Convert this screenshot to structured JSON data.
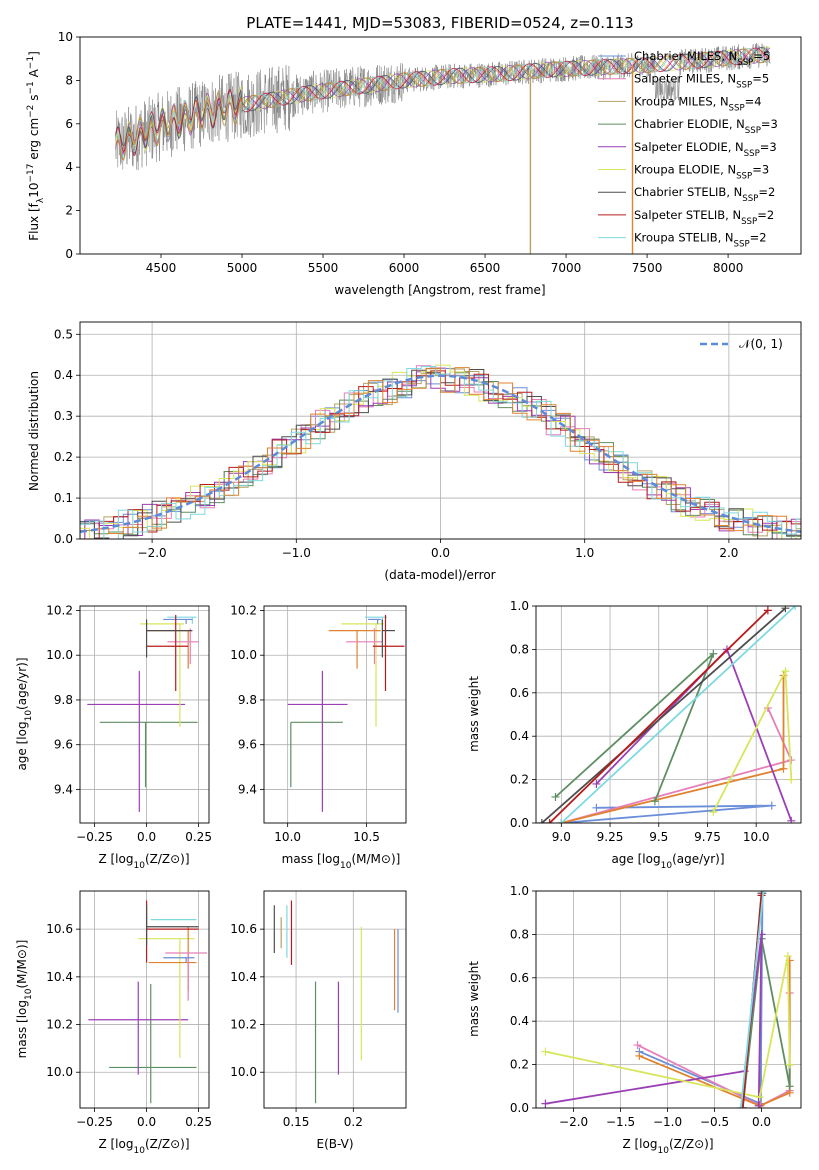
{
  "figure_title": "PLATE=1441, MJD=53083, FIBERID=0524, z=0.113",
  "colors": {
    "Chabrier MILES": "#6a8fd8",
    "Salpeter MILES": "#e67fb8",
    "Kroupa MILES": "#b5a264",
    "Chabrier ELODIE": "#5f8e63",
    "Salpeter ELODIE": "#9b3fb5",
    "Kroupa ELODIE": "#d7e65a",
    "Chabrier STELIB": "#4d4d4d",
    "Salpeter STELIB": "#b71c1c",
    "Kroupa STELIB": "#7fd9e0",
    "orange": "#e0822e",
    "data": "#808080",
    "gaussian": "#5b8bd9"
  },
  "chart_data": [
    {
      "id": "spectrum",
      "type": "line",
      "xlabel": "wavelength [Angstrom, rest frame]",
      "ylabel": "Flux [f_λ10^-17 erg cm^-2 s^-1 A^-1]",
      "xlim": [
        4000,
        8450
      ],
      "ylim": [
        0,
        10
      ],
      "xticks": [
        4500,
        5000,
        5500,
        6000,
        6500,
        7000,
        7500,
        8000
      ],
      "yticks": [
        0,
        2,
        4,
        6,
        8,
        10
      ],
      "legend_position": "upper-right",
      "legend": [
        {
          "base": "Chabrier MILES, N",
          "sub": "SSP",
          "tail": "=5",
          "color": "#6a8fd8"
        },
        {
          "base": "Salpeter MILES, N",
          "sub": "SSP",
          "tail": "=5",
          "color": "#e67fb8"
        },
        {
          "base": "Kroupa MILES, N",
          "sub": "SSP",
          "tail": "=4",
          "color": "#b5a264"
        },
        {
          "base": "Chabrier ELODIE, N",
          "sub": "SSP",
          "tail": "=3",
          "color": "#5f8e63"
        },
        {
          "base": "Salpeter ELODIE, N",
          "sub": "SSP",
          "tail": "=3",
          "color": "#9b3fb5"
        },
        {
          "base": "Kroupa ELODIE, N",
          "sub": "SSP",
          "tail": "=3",
          "color": "#d7e65a"
        },
        {
          "base": "Chabrier STELIB, N",
          "sub": "SSP",
          "tail": "=2",
          "color": "#4d4d4d"
        },
        {
          "base": "Salpeter STELIB, N",
          "sub": "SSP",
          "tail": "=2",
          "color": "#b71c1c"
        },
        {
          "base": "Kroupa STELIB, N",
          "sub": "SSP",
          "tail": "=2",
          "color": "#7fd9e0"
        }
      ],
      "continuum": {
        "x": [
          4220,
          4500,
          4800,
          5100,
          5400,
          5700,
          6000,
          6300,
          6600,
          6900,
          7200,
          7500,
          7800,
          8100,
          8260
        ],
        "y": [
          5.0,
          5.9,
          6.6,
          7.0,
          7.4,
          7.7,
          8.0,
          8.2,
          8.3,
          8.5,
          8.6,
          8.7,
          8.9,
          9.1,
          9.2
        ]
      },
      "spikes": [
        {
          "x": 6780,
          "color": "#b5a264"
        },
        {
          "x": 7410,
          "color": "#e0822e"
        }
      ]
    },
    {
      "id": "residuals",
      "type": "histogram",
      "xlabel": "(data-model)/error",
      "ylabel": "Normed distribution",
      "xlim": [
        -2.5,
        2.5
      ],
      "ylim": [
        0,
        0.53
      ],
      "xticks": [
        -2,
        -1,
        0,
        1,
        2
      ],
      "yticks": [
        0.0,
        0.1,
        0.2,
        0.3,
        0.4,
        0.5
      ],
      "gaussian_label": "𝒩(0, 1)",
      "legend_position": "upper-right"
    },
    {
      "id": "age_vs_Z",
      "type": "errorbar",
      "xlabel": "Z [log10(Z/Z⊙)]",
      "ylabel": "age  [log10(age/yr)]",
      "xlim": [
        -0.32,
        0.3
      ],
      "ylim": [
        9.25,
        10.22
      ],
      "xticks": [
        -0.25,
        0.0,
        0.25
      ],
      "yticks": [
        9.4,
        9.6,
        9.8,
        10.0,
        10.2
      ],
      "points": [
        {
          "x": -0.005,
          "xerr": [
            0.22,
            0.25
          ],
          "y": 9.7,
          "yerr": [
            0.29,
            0.0
          ],
          "color": "#5f8e63"
        },
        {
          "x": -0.035,
          "xerr": [
            0.25,
            0.22
          ],
          "y": 9.78,
          "yerr": [
            0.48,
            0.15
          ],
          "color": "#9b3fb5"
        },
        {
          "x": 0.16,
          "xerr": [
            0.19,
            0.02
          ],
          "y": 10.14,
          "yerr": [
            0.46,
            0.0
          ],
          "color": "#d7e65a"
        },
        {
          "x": 0.2,
          "xerr": [
            0.2,
            0.02
          ],
          "y": 10.11,
          "yerr": [
            0.17,
            0.0
          ],
          "color": "#e0822e"
        },
        {
          "x": 0.21,
          "xerr": [
            0.11,
            0.04
          ],
          "y": 10.06,
          "yerr": [
            0.1,
            0.06
          ],
          "color": "#e67fb8"
        },
        {
          "x": 0.22,
          "xerr": [
            0.12,
            0.02
          ],
          "y": 10.17,
          "yerr": [
            0.03,
            0.0
          ],
          "color": "#7fd9e0"
        },
        {
          "x": 0.19,
          "xerr": [
            0.11,
            0.03
          ],
          "y": 10.16,
          "yerr": [
            0.02,
            0.0
          ],
          "color": "#6a8fd8"
        },
        {
          "x": 0.14,
          "xerr": [
            0.14,
            0.06
          ],
          "y": 10.04,
          "yerr": [
            0.2,
            0.14
          ],
          "color": "#b71c1c"
        },
        {
          "x": 0.0,
          "xerr": [
            0.0,
            0.22
          ],
          "y": 10.11,
          "yerr": [
            0.12,
            0.05
          ],
          "color": "#4d4d4d"
        }
      ]
    },
    {
      "id": "age_vs_mass",
      "type": "errorbar",
      "xlabel": "mass [log10(M/M⊙)]",
      "ylabel": "",
      "xlim": [
        9.85,
        10.75
      ],
      "ylim": [
        9.25,
        10.22
      ],
      "xticks": [
        10.0,
        10.5
      ],
      "yticks": [
        9.4,
        9.6,
        9.8,
        10.0,
        10.2
      ],
      "points": [
        {
          "x": 10.02,
          "xerr": [
            0.0,
            0.33
          ],
          "y": 9.7,
          "yerr": [
            0.29,
            0.0
          ],
          "color": "#5f8e63"
        },
        {
          "x": 10.22,
          "xerr": [
            0.22,
            0.16
          ],
          "y": 9.78,
          "yerr": [
            0.48,
            0.15
          ],
          "color": "#9b3fb5"
        },
        {
          "x": 10.56,
          "xerr": [
            0.22,
            0.05
          ],
          "y": 10.14,
          "yerr": [
            0.46,
            0.0
          ],
          "color": "#d7e65a"
        },
        {
          "x": 10.44,
          "xerr": [
            0.18,
            0.15
          ],
          "y": 10.11,
          "yerr": [
            0.17,
            0.0
          ],
          "color": "#e0822e"
        },
        {
          "x": 10.55,
          "xerr": [
            0.18,
            0.05
          ],
          "y": 10.06,
          "yerr": [
            0.1,
            0.06
          ],
          "color": "#e67fb8"
        },
        {
          "x": 10.6,
          "xerr": [
            0.11,
            0.03
          ],
          "y": 10.17,
          "yerr": [
            0.03,
            0.0
          ],
          "color": "#7fd9e0"
        },
        {
          "x": 10.57,
          "xerr": [
            0.06,
            0.02
          ],
          "y": 10.16,
          "yerr": [
            0.02,
            0.0
          ],
          "color": "#6a8fd8"
        },
        {
          "x": 10.62,
          "xerr": [
            0.08,
            0.12
          ],
          "y": 10.04,
          "yerr": [
            0.2,
            0.14
          ],
          "color": "#b71c1c"
        },
        {
          "x": 10.6,
          "xerr": [
            0.0,
            0.08
          ],
          "y": 10.11,
          "yerr": [
            0.12,
            0.05
          ],
          "color": "#4d4d4d"
        }
      ]
    },
    {
      "id": "mass_weight_vs_age",
      "type": "line",
      "xlabel": "age  [log10(age/yr)]",
      "ylabel": "mass weight",
      "xlim": [
        8.87,
        10.23
      ],
      "ylim": [
        0,
        1
      ],
      "xticks": [
        9.0,
        9.25,
        9.5,
        9.75,
        10.0
      ],
      "yticks": [
        0.0,
        0.2,
        0.4,
        0.6,
        0.8,
        1.0
      ],
      "series": [
        {
          "color": "#6a8fd8",
          "x": [
            9.18,
            10.08,
            9.0
          ],
          "y": [
            0.07,
            0.08,
            0.0
          ]
        },
        {
          "color": "#e67fb8",
          "x": [
            10.06,
            10.18,
            9.0
          ],
          "y": [
            0.53,
            0.29,
            0.0
          ]
        },
        {
          "color": "#e0822e",
          "x": [
            10.14,
            10.14,
            9.0
          ],
          "y": [
            0.68,
            0.25,
            0.0
          ]
        },
        {
          "color": "#5f8e63",
          "x": [
            9.48,
            9.78,
            8.97
          ],
          "y": [
            0.1,
            0.78,
            0.12
          ]
        },
        {
          "color": "#9b3fb5",
          "x": [
            10.18,
            9.85,
            9.18
          ],
          "y": [
            0.01,
            0.8,
            0.18
          ]
        },
        {
          "color": "#d7e65a",
          "x": [
            9.78,
            10.15,
            10.18
          ],
          "y": [
            0.05,
            0.7,
            0.2
          ]
        },
        {
          "color": "#4d4d4d",
          "x": [
            8.9,
            10.15
          ],
          "y": [
            0.0,
            0.99
          ]
        },
        {
          "color": "#b71c1c",
          "x": [
            8.94,
            10.06
          ],
          "y": [
            0.0,
            0.98
          ]
        },
        {
          "color": "#7fd9e0",
          "x": [
            9.0,
            10.2
          ],
          "y": [
            0.0,
            1.0
          ]
        }
      ]
    },
    {
      "id": "mass_vs_Z",
      "type": "errorbar",
      "xlabel": "Z [log10(Z/Z⊙)]",
      "ylabel": "mass [log10(M/M⊙)]",
      "xlim": [
        -0.32,
        0.3
      ],
      "ylim": [
        9.85,
        10.76
      ],
      "xticks": [
        -0.25,
        0.0,
        0.25
      ],
      "yticks": [
        10.0,
        10.2,
        10.4,
        10.6
      ],
      "points": [
        {
          "x": 0.02,
          "xerr": [
            0.2,
            0.22
          ],
          "y": 10.02,
          "yerr": [
            0.15,
            0.35
          ],
          "color": "#5f8e63"
        },
        {
          "x": -0.04,
          "xerr": [
            0.24,
            0.24
          ],
          "y": 10.22,
          "yerr": [
            0.23,
            0.16
          ],
          "color": "#9b3fb5"
        },
        {
          "x": 0.16,
          "xerr": [
            0.2,
            0.07
          ],
          "y": 10.56,
          "yerr": [
            0.5,
            0.0
          ],
          "color": "#d7e65a"
        },
        {
          "x": 0.2,
          "xerr": [
            0.19,
            0.04
          ],
          "y": 10.46,
          "yerr": [
            0.12,
            0.15
          ],
          "color": "#e0822e"
        },
        {
          "x": 0.2,
          "xerr": [
            0.11,
            0.09
          ],
          "y": 10.5,
          "yerr": [
            0.2,
            0.0
          ],
          "color": "#e67fb8"
        },
        {
          "x": 0.22,
          "xerr": [
            0.2,
            0.02
          ],
          "y": 10.64,
          "yerr": [
            0.0,
            0.0
          ],
          "color": "#7fd9e0"
        },
        {
          "x": 0.19,
          "xerr": [
            0.11,
            0.04
          ],
          "y": 10.48,
          "yerr": [
            0.02,
            0.0
          ],
          "color": "#6a8fd8"
        },
        {
          "x": 0.0,
          "xerr": [
            0.0,
            0.25
          ],
          "y": 10.6,
          "yerr": [
            0.14,
            0.12
          ],
          "color": "#b71c1c"
        },
        {
          "x": 0.0,
          "xerr": [
            0.0,
            0.25
          ],
          "y": 10.61,
          "yerr": [
            0.08,
            0.09
          ],
          "color": "#4d4d4d"
        }
      ]
    },
    {
      "id": "mass_vs_ebv",
      "type": "errorbar",
      "xlabel": "E(B-V)",
      "ylabel": "",
      "xlim": [
        0.122,
        0.246
      ],
      "ylim": [
        9.85,
        10.76
      ],
      "xticks": [
        0.15,
        0.2
      ],
      "yticks": [
        10.0,
        10.2,
        10.4,
        10.6
      ],
      "points": [
        {
          "x": 0.131,
          "xerr": [
            0,
            0
          ],
          "y": 10.6,
          "yerr": [
            0.1,
            0.1
          ],
          "color": "#4d4d4d"
        },
        {
          "x": 0.137,
          "xerr": [
            0,
            0
          ],
          "y": 10.58,
          "yerr": [
            0.06,
            0.07
          ],
          "color": "#b5a264"
        },
        {
          "x": 0.142,
          "xerr": [
            0,
            0
          ],
          "y": 10.58,
          "yerr": [
            0.1,
            0.12
          ],
          "color": "#7fd9e0"
        },
        {
          "x": 0.146,
          "xerr": [
            0,
            0
          ],
          "y": 10.58,
          "yerr": [
            0.13,
            0.14
          ],
          "color": "#b71c1c"
        },
        {
          "x": 0.167,
          "xerr": [
            0,
            0
          ],
          "y": 10.12,
          "yerr": [
            0.25,
            0.26
          ],
          "color": "#5f8e63"
        },
        {
          "x": 0.187,
          "xerr": [
            0,
            0
          ],
          "y": 10.19,
          "yerr": [
            0.2,
            0.19
          ],
          "color": "#9b3fb5"
        },
        {
          "x": 0.207,
          "xerr": [
            0,
            0
          ],
          "y": 10.34,
          "yerr": [
            0.29,
            0.27
          ],
          "color": "#d7e65a"
        },
        {
          "x": 0.236,
          "xerr": [
            0,
            0
          ],
          "y": 10.42,
          "yerr": [
            0.16,
            0.18
          ],
          "color": "#e0822e"
        },
        {
          "x": 0.239,
          "xerr": [
            0,
            0
          ],
          "y": 10.42,
          "yerr": [
            0.17,
            0.18
          ],
          "color": "#6a8fd8"
        }
      ]
    },
    {
      "id": "mass_weight_vs_Z",
      "type": "line",
      "xlabel": "Z [log10(Z/Z⊙)]",
      "ylabel": "mass weight",
      "xlim": [
        -2.4,
        0.42
      ],
      "ylim": [
        0,
        1
      ],
      "xticks": [
        -2.0,
        -1.5,
        -1.0,
        -0.5,
        0.0
      ],
      "yticks": [
        0.0,
        0.2,
        0.4,
        0.6,
        0.8,
        1.0
      ],
      "series": [
        {
          "color": "#6a8fd8",
          "x": [
            -1.3,
            -0.01,
            0.01
          ],
          "y": [
            0.26,
            0.02,
            0.99
          ]
        },
        {
          "color": "#e67fb8",
          "x": [
            -1.32,
            -0.01,
            0.3,
            0.3
          ],
          "y": [
            0.29,
            0.01,
            0.08,
            0.53
          ]
        },
        {
          "color": "#e0822e",
          "x": [
            -1.3,
            -0.02,
            0.3,
            0.3
          ],
          "y": [
            0.24,
            0.01,
            0.07,
            0.68
          ]
        },
        {
          "color": "#5f8e63",
          "x": [
            -0.2,
            0.0,
            0.3,
            0.3
          ],
          "y": [
            0.0,
            0.78,
            0.1,
            0.2
          ]
        },
        {
          "color": "#9b3fb5",
          "x": [
            -2.3,
            -0.18,
            0.0,
            -0.03
          ],
          "y": [
            0.02,
            0.17,
            0.8,
            0.01
          ]
        },
        {
          "color": "#d7e65a",
          "x": [
            -2.3,
            -0.02,
            0.28,
            0.3
          ],
          "y": [
            0.26,
            0.05,
            0.7,
            0.2
          ]
        },
        {
          "color": "#4d4d4d",
          "x": [
            -0.2,
            0.0
          ],
          "y": [
            0.0,
            0.99
          ]
        },
        {
          "color": "#b71c1c",
          "x": [
            -0.2,
            0.0
          ],
          "y": [
            0.0,
            0.98
          ]
        },
        {
          "color": "#7fd9e0",
          "x": [
            -0.22,
            0.02
          ],
          "y": [
            0.0,
            1.0
          ]
        }
      ]
    }
  ]
}
